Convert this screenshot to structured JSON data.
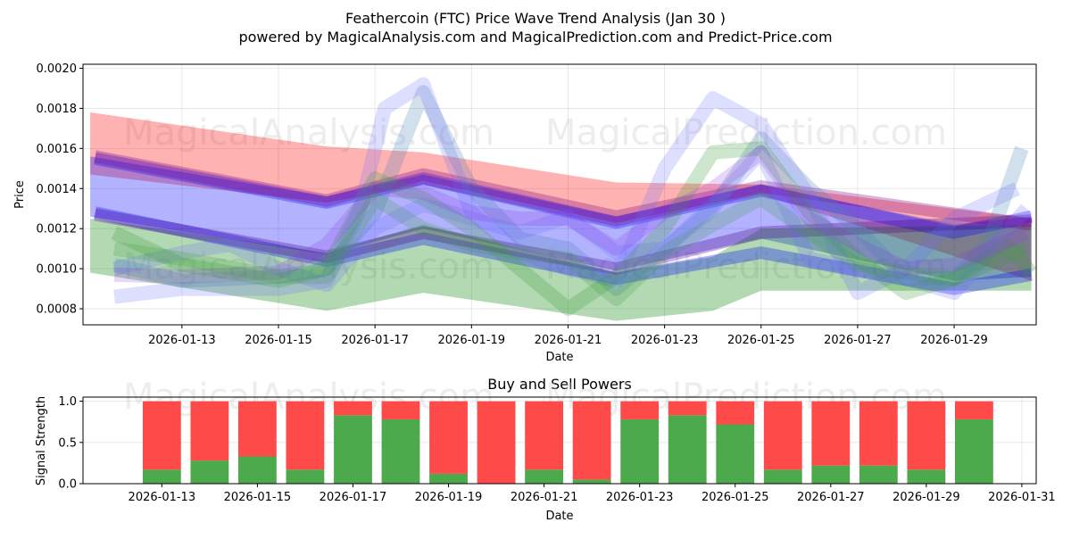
{
  "figure": {
    "title_line1": "Feathercoin (FTC) Price Wave Trend Analysis (Jan 30 )",
    "title_line2": "powered by MagicalAnalysis.com and MagicalPrediction.com and Predict-Price.com",
    "watermark_1": "MagicalAnalysis.com",
    "watermark_2": "MagicalPrediction.com"
  },
  "chart_data": [
    {
      "type": "line",
      "title": "",
      "xlabel": "Date",
      "ylabel": "Price",
      "x_start_day": 11,
      "x_end_day": 31,
      "xlim": [
        10.95,
        30.7
      ],
      "ylim": [
        0.00072,
        0.00202
      ],
      "x_ticks": [
        {
          "day": 13,
          "label": "2026-01-13"
        },
        {
          "day": 15,
          "label": "2026-01-15"
        },
        {
          "day": 17,
          "label": "2026-01-17"
        },
        {
          "day": 19,
          "label": "2026-01-19"
        },
        {
          "day": 21,
          "label": "2026-01-21"
        },
        {
          "day": 23,
          "label": "2026-01-23"
        },
        {
          "day": 25,
          "label": "2026-01-25"
        },
        {
          "day": 27,
          "label": "2026-01-27"
        },
        {
          "day": 29,
          "label": "2026-01-29"
        }
      ],
      "y_ticks": [
        {
          "value": 0.0008,
          "label": "0.0008"
        },
        {
          "value": 0.001,
          "label": "0.0010"
        },
        {
          "value": 0.0012,
          "label": "0.0012"
        },
        {
          "value": 0.0014,
          "label": "0.0014"
        },
        {
          "value": 0.0016,
          "label": "0.0016"
        },
        {
          "value": 0.0018,
          "label": "0.0018"
        },
        {
          "value": 0.002,
          "label": "0.0020"
        }
      ],
      "grid": true,
      "bands": [
        {
          "name": "red-wave-band",
          "color": "#ff0000",
          "opacity": 0.3,
          "upper": [
            [
              11.1,
              0.00178
            ],
            [
              16,
              0.00161
            ],
            [
              18,
              0.00158
            ],
            [
              22,
              0.00143
            ],
            [
              25,
              0.00142
            ],
            [
              30.6,
              0.00125
            ]
          ],
          "lower": [
            [
              11.1,
              0.00147
            ],
            [
              16,
              0.00133
            ],
            [
              18,
              0.00142
            ],
            [
              22,
              0.00121
            ],
            [
              25,
              0.00137
            ],
            [
              30.6,
              0.00094
            ]
          ]
        },
        {
          "name": "blue-wave-band",
          "color": "#0000ff",
          "opacity": 0.3,
          "upper": [
            [
              11.1,
              0.00156
            ],
            [
              16,
              0.00136
            ],
            [
              18,
              0.00147
            ],
            [
              22,
              0.00126
            ],
            [
              25,
              0.00142
            ],
            [
              29,
              0.00122
            ],
            [
              30.6,
              0.00126
            ]
          ],
          "lower": [
            [
              11.1,
              0.00126
            ],
            [
              16,
              0.00107
            ],
            [
              18,
              0.0012
            ],
            [
              22,
              0.00099
            ],
            [
              25,
              0.00115
            ],
            [
              29,
              0.00094
            ],
            [
              30.6,
              0.00096
            ]
          ]
        },
        {
          "name": "green-wave-band",
          "color": "#008000",
          "opacity": 0.3,
          "upper": [
            [
              11.1,
              0.00125
            ],
            [
              16,
              0.00108
            ],
            [
              18,
              0.00122
            ],
            [
              22,
              0.00098
            ],
            [
              24,
              0.00106
            ],
            [
              25,
              0.0012
            ],
            [
              30.6,
              0.00122
            ]
          ],
          "lower": [
            [
              11.1,
              0.00098
            ],
            [
              16,
              0.00079
            ],
            [
              18,
              0.00088
            ],
            [
              22,
              0.00074
            ],
            [
              24,
              0.00079
            ],
            [
              25,
              0.00089
            ],
            [
              30.6,
              0.00089
            ]
          ]
        }
      ],
      "series": [
        {
          "name": "blue-trend-1",
          "color": "#0000ff",
          "opacity": 0.3,
          "width": 14,
          "points": [
            [
              11.2,
              0.00128
            ],
            [
              16,
              0.00104
            ],
            [
              18,
              0.00115
            ],
            [
              22,
              0.00095
            ],
            [
              25,
              0.00108
            ],
            [
              29,
              0.0009
            ],
            [
              30.6,
              0.00097
            ]
          ]
        },
        {
          "name": "blue-trend-2",
          "color": "#0000ff",
          "opacity": 0.3,
          "width": 14,
          "points": [
            [
              11.2,
              0.00155
            ],
            [
              16,
              0.00133
            ],
            [
              18,
              0.00145
            ],
            [
              22,
              0.00123
            ],
            [
              25,
              0.00139
            ],
            [
              29,
              0.00118
            ],
            [
              30.6,
              0.00126
            ]
          ]
        },
        {
          "name": "purple-trend-1",
          "color": "#4b0082",
          "opacity": 0.3,
          "width": 14,
          "points": [
            [
              11.2,
              0.00127
            ],
            [
              16,
              0.00106
            ],
            [
              18,
              0.00118
            ],
            [
              22,
              0.001
            ],
            [
              25,
              0.00118
            ],
            [
              30.6,
              0.00124
            ]
          ]
        },
        {
          "name": "purple-trend-2",
          "color": "#800080",
          "opacity": 0.3,
          "width": 14,
          "points": [
            [
              11.2,
              0.00156
            ],
            [
              16,
              0.00134
            ],
            [
              18,
              0.00147
            ],
            [
              22,
              0.00126
            ],
            [
              25,
              0.00141
            ],
            [
              30.6,
              0.00122
            ]
          ]
        },
        {
          "name": "steel-wave-1",
          "color": "#4682b4",
          "opacity": 0.25,
          "width": 16,
          "points": [
            [
              11.6,
              0.00102
            ],
            [
              13,
              0.00094
            ],
            [
              15,
              0.00096
            ],
            [
              16,
              0.001
            ],
            [
              17,
              0.00128
            ],
            [
              18,
              0.00188
            ],
            [
              19,
              0.0014
            ],
            [
              20,
              0.00115
            ],
            [
              21,
              0.0011
            ],
            [
              22,
              0.0009
            ],
            [
              23,
              0.0011
            ],
            [
              24,
              0.0013
            ],
            [
              25,
              0.00165
            ],
            [
              26,
              0.0014
            ],
            [
              27,
              0.0012
            ],
            [
              28,
              0.00095
            ],
            [
              29,
              0.00095
            ],
            [
              29.7,
              0.00112
            ],
            [
              30.4,
              0.0016
            ]
          ]
        },
        {
          "name": "blue-wave-1",
          "color": "#6a6aff",
          "opacity": 0.22,
          "width": 16,
          "points": [
            [
              11.6,
              0.00086
            ],
            [
              13,
              0.0009
            ],
            [
              15,
              0.0009
            ],
            [
              16,
              0.00094
            ],
            [
              16.7,
              0.0013
            ],
            [
              17.2,
              0.0018
            ],
            [
              18,
              0.00192
            ],
            [
              19,
              0.00128
            ],
            [
              20,
              0.00108
            ],
            [
              21,
              0.001
            ],
            [
              22,
              0.00094
            ],
            [
              23,
              0.0015
            ],
            [
              24,
              0.00185
            ],
            [
              25,
              0.00172
            ],
            [
              26,
              0.00136
            ],
            [
              27,
              0.00088
            ],
            [
              28,
              0.001
            ],
            [
              29,
              0.00125
            ],
            [
              30.3,
              0.0014
            ]
          ]
        },
        {
          "name": "blue-wave-2",
          "color": "#6a6aff",
          "opacity": 0.22,
          "width": 16,
          "points": [
            [
              11.6,
              0.001
            ],
            [
              13,
              0.00108
            ],
            [
              14,
              0.00112
            ],
            [
              15,
              0.001
            ],
            [
              16,
              0.00092
            ],
            [
              17,
              0.0012
            ],
            [
              18,
              0.00132
            ],
            [
              19,
              0.00125
            ],
            [
              20,
              0.00118
            ],
            [
              21,
              0.00126
            ],
            [
              22,
              0.00108
            ],
            [
              23,
              0.0011
            ],
            [
              24,
              0.00132
            ],
            [
              25,
              0.00158
            ],
            [
              26,
              0.00105
            ],
            [
              27,
              0.001
            ],
            [
              28,
              0.00095
            ],
            [
              29,
              0.00088
            ],
            [
              30.5,
              0.0013
            ]
          ]
        },
        {
          "name": "green-wave-1",
          "color": "#3a9a3a",
          "opacity": 0.25,
          "width": 16,
          "points": [
            [
              11.6,
              0.00118
            ],
            [
              13,
              0.00102
            ],
            [
              15,
              0.00094
            ],
            [
              16,
              0.001
            ],
            [
              17,
              0.00145
            ],
            [
              18,
              0.00135
            ],
            [
              19,
              0.0012
            ],
            [
              20,
              0.001
            ],
            [
              21,
              0.0008
            ],
            [
              22,
              0.00096
            ],
            [
              23,
              0.0012
            ],
            [
              24,
              0.00158
            ],
            [
              25,
              0.0016
            ],
            [
              26,
              0.00128
            ],
            [
              27,
              0.00105
            ],
            [
              28,
              0.00088
            ],
            [
              29,
              0.00095
            ],
            [
              30.1,
              0.00112
            ],
            [
              30.6,
              0.00098
            ]
          ]
        },
        {
          "name": "purple-wave-1",
          "color": "#8a2be2",
          "opacity": 0.2,
          "width": 16,
          "points": [
            [
              11.6,
              0.00097
            ],
            [
              13,
              0.00096
            ],
            [
              15,
              0.00098
            ],
            [
              16,
              0.00112
            ],
            [
              17,
              0.0014
            ],
            [
              18,
              0.00138
            ],
            [
              19,
              0.00128
            ],
            [
              20,
              0.00125
            ],
            [
              21,
              0.00125
            ],
            [
              22,
              0.0011
            ],
            [
              23,
              0.00128
            ],
            [
              24,
              0.0014
            ],
            [
              25,
              0.00158
            ],
            [
              26,
              0.00125
            ],
            [
              27,
              0.00112
            ],
            [
              28,
              0.001
            ],
            [
              29,
              0.00102
            ],
            [
              30.5,
              0.00118
            ]
          ]
        },
        {
          "name": "green-wave-2",
          "color": "#3a9a3a",
          "opacity": 0.22,
          "width": 16,
          "points": [
            [
              11.6,
              0.0011
            ],
            [
              13,
              0.00105
            ],
            [
              15,
              0.00096
            ],
            [
              16,
              0.00096
            ],
            [
              17,
              0.00135
            ],
            [
              18,
              0.0012
            ],
            [
              19,
              0.00112
            ],
            [
              20,
              0.00108
            ],
            [
              21,
              0.00105
            ],
            [
              22,
              0.00085
            ],
            [
              23,
              0.00108
            ],
            [
              24,
              0.00122
            ],
            [
              25,
              0.00135
            ],
            [
              26,
              0.00118
            ],
            [
              27,
              0.00102
            ],
            [
              28,
              0.00098
            ],
            [
              29,
              0.00095
            ],
            [
              30.5,
              0.0011
            ]
          ]
        }
      ]
    },
    {
      "type": "bar",
      "stacked": true,
      "title": "Buy and Sell Powers",
      "xlabel": "Date",
      "ylabel": "Signal Strength",
      "xlim": [
        11.35,
        31.3
      ],
      "ylim": [
        0,
        1.05
      ],
      "x_ticks": [
        {
          "day": 13,
          "label": "2026-01-13"
        },
        {
          "day": 15,
          "label": "2026-01-15"
        },
        {
          "day": 17,
          "label": "2026-01-17"
        },
        {
          "day": 19,
          "label": "2026-01-19"
        },
        {
          "day": 21,
          "label": "2026-01-21"
        },
        {
          "day": 23,
          "label": "2026-01-23"
        },
        {
          "day": 25,
          "label": "2026-01-25"
        },
        {
          "day": 27,
          "label": "2026-01-27"
        },
        {
          "day": 29,
          "label": "2026-01-29"
        },
        {
          "day": 31,
          "label": "2026-01-31"
        }
      ],
      "y_ticks": [
        {
          "value": 0.0,
          "label": "0.0"
        },
        {
          "value": 0.5,
          "label": "0.5"
        },
        {
          "value": 1.0,
          "label": "1.0"
        }
      ],
      "grid": true,
      "days": [
        13,
        14,
        15,
        16,
        17,
        18,
        19,
        20,
        21,
        22,
        23,
        24,
        25,
        26,
        27,
        28,
        29,
        30
      ],
      "series": [
        {
          "name": "Buy",
          "color": "#4caa4c",
          "values": [
            0.17,
            0.28,
            0.33,
            0.17,
            0.83,
            0.78,
            0.12,
            0.0,
            0.17,
            0.05,
            0.78,
            0.83,
            0.72,
            0.17,
            0.22,
            0.22,
            0.17,
            0.78
          ]
        },
        {
          "name": "Sell",
          "color": "#ff4a4a",
          "values": [
            0.83,
            0.72,
            0.67,
            0.83,
            0.17,
            0.22,
            0.88,
            1.0,
            0.83,
            0.95,
            0.22,
            0.17,
            0.28,
            0.83,
            0.78,
            0.78,
            0.83,
            0.22
          ]
        }
      ]
    }
  ]
}
